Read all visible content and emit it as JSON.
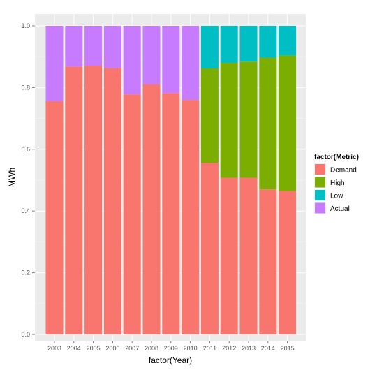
{
  "chart_data": {
    "type": "bar",
    "stacked": true,
    "title": "",
    "xlabel": "factor(Year)",
    "ylabel": "MWh",
    "ylim": [
      0,
      1.0
    ],
    "yticks": [
      "0.0",
      "0.2",
      "0.4",
      "0.6",
      "0.8",
      "1.0"
    ],
    "grid": true,
    "legend": {
      "title": "factor(Metric)",
      "position": "right",
      "entries": [
        "Demand",
        "High",
        "Low",
        "Actual"
      ]
    },
    "colors": {
      "Demand": "#f8766d",
      "High": "#7cae00",
      "Low": "#00bfc4",
      "Actual": "#c77cff",
      "panel": "#ebebeb",
      "grid": "#ffffff"
    },
    "categories": [
      "2003",
      "2004",
      "2005",
      "2006",
      "2007",
      "2008",
      "2009",
      "2010",
      "2011",
      "2012",
      "2013",
      "2014",
      "2015"
    ],
    "series": [
      {
        "name": "Demand",
        "values": [
          0.756,
          0.868,
          0.871,
          0.863,
          0.778,
          0.81,
          0.782,
          0.76,
          0.556,
          0.508,
          0.508,
          0.47,
          0.465
        ]
      },
      {
        "name": "High",
        "values": [
          0,
          0,
          0,
          0,
          0,
          0,
          0,
          0,
          0.306,
          0.372,
          0.376,
          0.427,
          0.439
        ]
      },
      {
        "name": "Low",
        "values": [
          0,
          0,
          0,
          0,
          0,
          0,
          0,
          0,
          0.138,
          0.12,
          0.116,
          0.103,
          0.096
        ]
      },
      {
        "name": "Actual",
        "values": [
          0.244,
          0.132,
          0.129,
          0.137,
          0.222,
          0.19,
          0.218,
          0.24,
          0,
          0,
          0,
          0,
          0
        ]
      }
    ]
  }
}
